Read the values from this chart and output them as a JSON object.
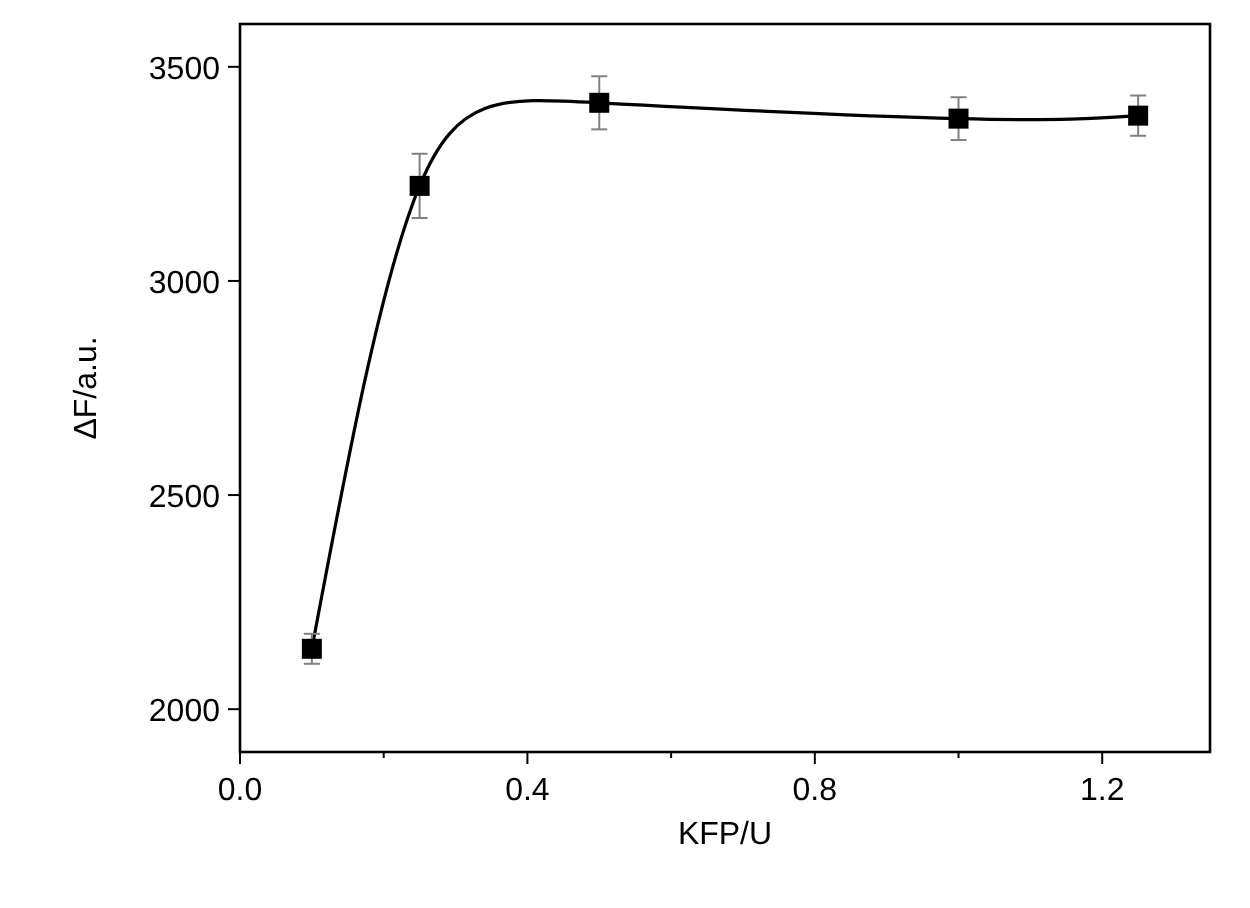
{
  "chart_data": {
    "type": "line",
    "xlabel": "KFP/U",
    "ylabel": "ΔF/a.u.",
    "x": [
      0.1,
      0.25,
      0.5,
      1.0,
      1.25
    ],
    "series": [
      {
        "color": "#000000",
        "values": [
          2141,
          3222,
          3416,
          3379,
          3386
        ],
        "errors": [
          35,
          75,
          62,
          50,
          47
        ]
      }
    ],
    "xlim": [
      0,
      1.35
    ],
    "xticks": [
      {
        "value": 0,
        "label": "0.0"
      },
      0.4,
      0.8,
      1.2
    ],
    "ylim": [
      1900,
      3600
    ],
    "yticks": [
      2000,
      2500,
      3000,
      3500
    ],
    "marker": "square",
    "grid": false
  }
}
